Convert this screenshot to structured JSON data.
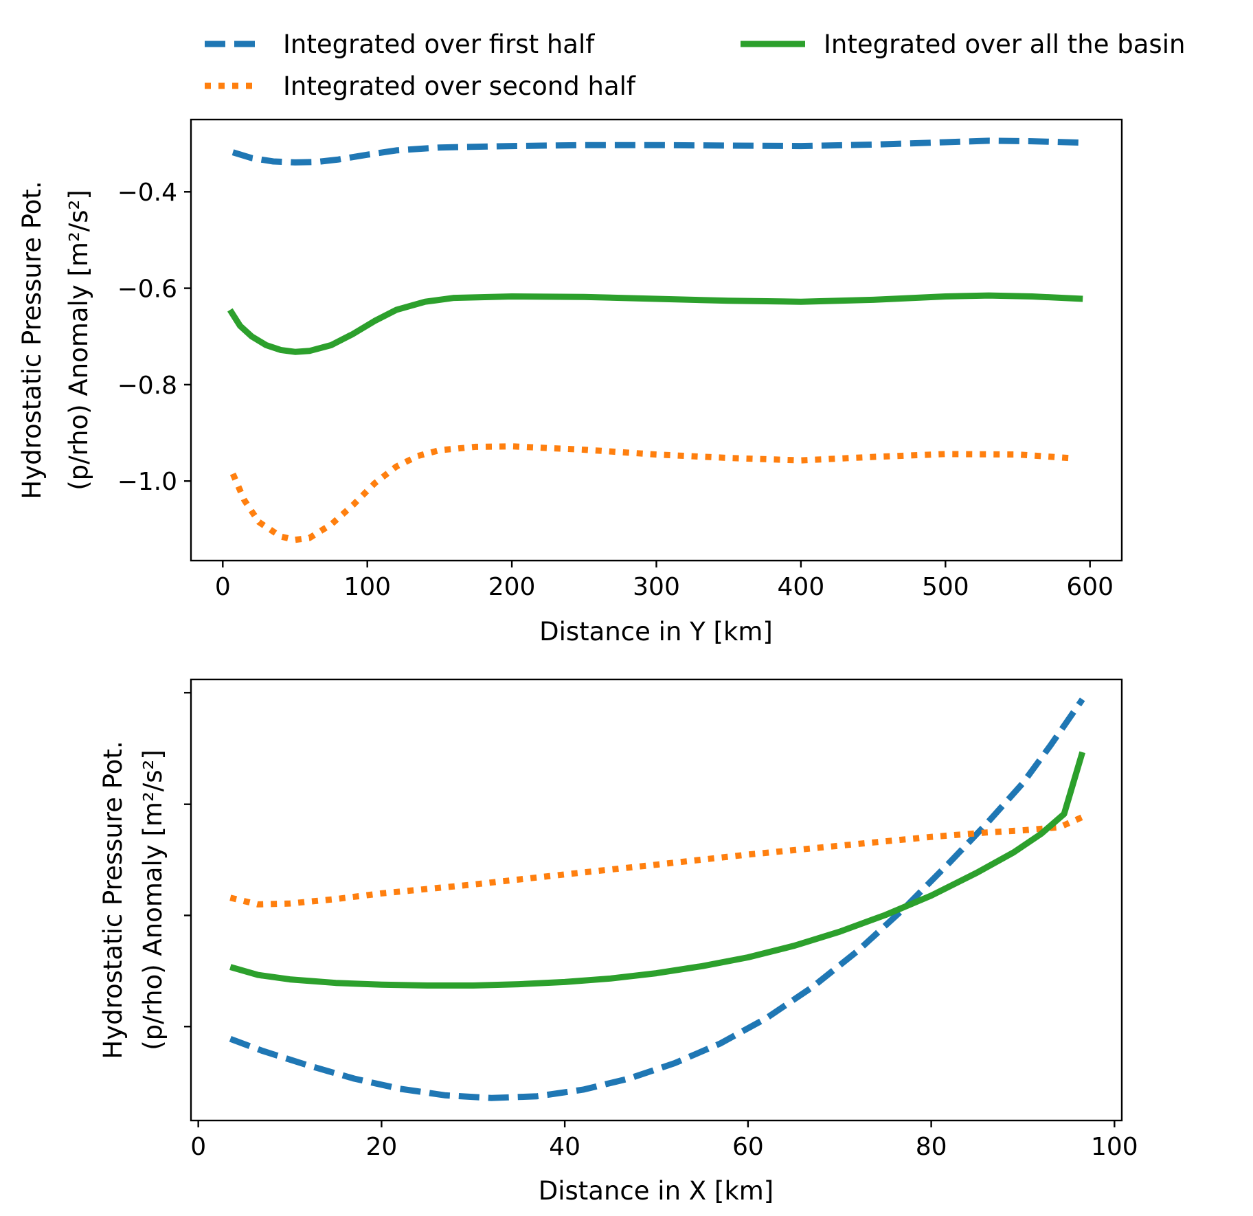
{
  "legend": {
    "entries": [
      {
        "label": "Integrated over first half",
        "color": "#1f77b4",
        "style": "dashed"
      },
      {
        "label": "Integrated over second half",
        "color": "#ff7f0e",
        "style": "dotted"
      },
      {
        "label": "Integrated over all the basin",
        "color": "#2ca02c",
        "style": "solid"
      }
    ],
    "placement": "top, above upper panel, 2 columns"
  },
  "chart_data": [
    {
      "type": "line",
      "xlabel": "Distance in Y [km]",
      "ylabel_line1": "Hydrostatic Pressure Pot.",
      "ylabel_line2": "(p/rho) Anomaly [m²/s²]",
      "xlim": [
        -22,
        622
      ],
      "ylim": [
        -1.165,
        -0.25
      ],
      "xticks": [
        0,
        100,
        200,
        300,
        400,
        500,
        600
      ],
      "xtick_labels": [
        "0",
        "100",
        "200",
        "300",
        "400",
        "500",
        "600"
      ],
      "yticks": [
        -0.4,
        -0.6,
        -0.8,
        -1.0
      ],
      "ytick_labels": [
        "−0.4",
        "−0.6",
        "−0.8",
        "−1.0"
      ],
      "grid": false,
      "series": [
        {
          "name": "Integrated over first half",
          "x": [
            7,
            20,
            35,
            50,
            65,
            80,
            100,
            120,
            150,
            200,
            250,
            300,
            350,
            400,
            450,
            500,
            530,
            560,
            595
          ],
          "y": [
            -0.318,
            -0.33,
            -0.337,
            -0.339,
            -0.338,
            -0.333,
            -0.323,
            -0.314,
            -0.308,
            -0.305,
            -0.303,
            -0.303,
            -0.304,
            -0.305,
            -0.302,
            -0.297,
            -0.294,
            -0.295,
            -0.298
          ]
        },
        {
          "name": "Integrated over second half",
          "x": [
            7,
            15,
            25,
            40,
            50,
            60,
            75,
            90,
            105,
            120,
            135,
            150,
            175,
            200,
            250,
            300,
            350,
            400,
            450,
            500,
            550,
            585
          ],
          "y": [
            -0.985,
            -1.04,
            -1.085,
            -1.115,
            -1.122,
            -1.118,
            -1.09,
            -1.05,
            -1.005,
            -0.97,
            -0.948,
            -0.936,
            -0.929,
            -0.928,
            -0.935,
            -0.945,
            -0.952,
            -0.957,
            -0.95,
            -0.944,
            -0.945,
            -0.952
          ]
        },
        {
          "name": "Integrated over all the basin",
          "x": [
            5,
            12,
            20,
            30,
            40,
            50,
            60,
            75,
            90,
            105,
            120,
            140,
            160,
            200,
            250,
            300,
            350,
            400,
            450,
            500,
            530,
            560,
            595
          ],
          "y": [
            -0.645,
            -0.678,
            -0.7,
            -0.718,
            -0.728,
            -0.732,
            -0.73,
            -0.718,
            -0.695,
            -0.668,
            -0.645,
            -0.628,
            -0.62,
            -0.617,
            -0.618,
            -0.622,
            -0.626,
            -0.628,
            -0.624,
            -0.617,
            -0.615,
            -0.617,
            -0.622
          ]
        }
      ]
    },
    {
      "type": "line",
      "xlabel": "Distance in X [km]",
      "ylabel_line1": "Hydrostatic Pressure Pot.",
      "ylabel_line2": "(p/rho) Anomaly [m²/s²]",
      "xlim": [
        -0.8,
        100.8
      ],
      "ylim": [
        0,
        1
      ],
      "xticks": [
        0,
        20,
        40,
        60,
        80,
        100
      ],
      "xtick_labels": [
        "0",
        "20",
        "40",
        "60",
        "80",
        "100"
      ],
      "yticks_unlabeled": [
        0.213,
        0.465,
        0.717,
        0.97
      ],
      "grid": false,
      "series": [
        {
          "name": "Integrated over first half",
          "x": [
            3.5,
            7,
            12,
            17,
            22,
            27,
            32,
            37,
            42,
            47,
            52,
            57,
            62,
            67,
            72,
            77,
            82,
            86,
            90,
            93,
            96.5
          ],
          "y": [
            0.185,
            0.158,
            0.125,
            0.095,
            0.072,
            0.057,
            0.051,
            0.055,
            0.07,
            0.095,
            0.13,
            0.175,
            0.232,
            0.302,
            0.385,
            0.48,
            0.585,
            0.672,
            0.765,
            0.85,
            0.955
          ]
        },
        {
          "name": "Integrated over second half",
          "x": [
            3.5,
            6.5,
            10,
            15,
            20,
            30,
            40,
            50,
            60,
            70,
            80,
            86,
            90,
            94,
            96.5
          ],
          "y": [
            0.505,
            0.49,
            0.492,
            0.502,
            0.515,
            0.535,
            0.558,
            0.58,
            0.603,
            0.623,
            0.643,
            0.653,
            0.658,
            0.665,
            0.688
          ]
        },
        {
          "name": "Integrated over all the basin",
          "x": [
            3.5,
            6.5,
            10,
            15,
            20,
            25,
            30,
            35,
            40,
            45,
            50,
            55,
            60,
            65,
            70,
            75,
            80,
            85,
            89,
            92,
            94.5,
            96.5
          ],
          "y": [
            0.348,
            0.33,
            0.32,
            0.312,
            0.308,
            0.306,
            0.306,
            0.309,
            0.314,
            0.322,
            0.334,
            0.35,
            0.37,
            0.396,
            0.428,
            0.466,
            0.51,
            0.562,
            0.608,
            0.65,
            0.695,
            0.835
          ]
        }
      ]
    }
  ]
}
